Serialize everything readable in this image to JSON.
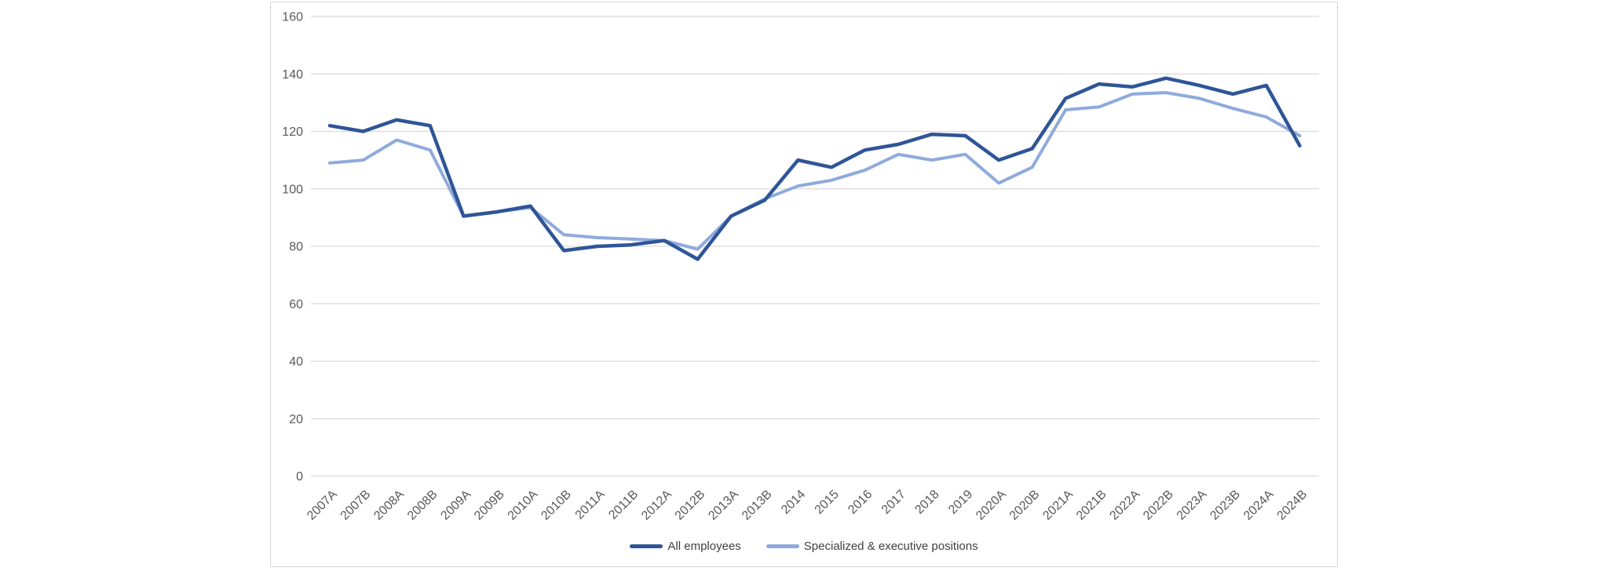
{
  "chart_data": {
    "type": "line",
    "title": "",
    "xlabel": "",
    "ylabel": "",
    "categories": [
      "2007A",
      "2007B",
      "2008A",
      "2008B",
      "2009A",
      "2009B",
      "2010A",
      "2010B",
      "2011A",
      "2011B",
      "2012A",
      "2012B",
      "2013A",
      "2013B",
      "2014",
      "2015",
      "2016",
      "2017",
      "2018",
      "2019",
      "2020A",
      "2020B",
      "2021A",
      "2021B",
      "2022A",
      "2022B",
      "2023A",
      "2023B",
      "2024A",
      "2024B"
    ],
    "series": [
      {
        "name": "All employees",
        "color": "#2F5597",
        "stroke_width": 4.5,
        "values": [
          122,
          120,
          124,
          122,
          90.5,
          92,
          94,
          78.5,
          80,
          80.5,
          82,
          75.5,
          90.5,
          96,
          110,
          107.5,
          113.5,
          115.5,
          119,
          118.5,
          110,
          114,
          131.5,
          136.5,
          135.5,
          138.5,
          136,
          133,
          136,
          115
        ]
      },
      {
        "name": "Specialized & executive positions",
        "color": "#8FAADC",
        "stroke_width": 4,
        "values": [
          109,
          110,
          117,
          113.5,
          90.5,
          92,
          93.5,
          84,
          83,
          82.5,
          82,
          79,
          90.5,
          96.5,
          101,
          103,
          106.5,
          112,
          110,
          112,
          102,
          107.5,
          127.5,
          128.5,
          133,
          133.5,
          131.5,
          128,
          125,
          118.5
        ]
      }
    ],
    "ylim": [
      0,
      160
    ],
    "ytick_step": 20,
    "ytick_labels": [
      "0",
      "20",
      "40",
      "60",
      "80",
      "100",
      "120",
      "140",
      "160"
    ],
    "grid": true,
    "legend_position": "bottom",
    "colors": {
      "background": "#FFFFFF",
      "panel_border": "#D9D9D9",
      "gridline": "#D9D9D9",
      "axis_label": "#595959",
      "legend_text": "#404040"
    }
  },
  "legend": {
    "items": [
      {
        "label": "All employees",
        "color": "#2F5597"
      },
      {
        "label": "Specialized & executive positions",
        "color": "#8FAADC"
      }
    ]
  }
}
